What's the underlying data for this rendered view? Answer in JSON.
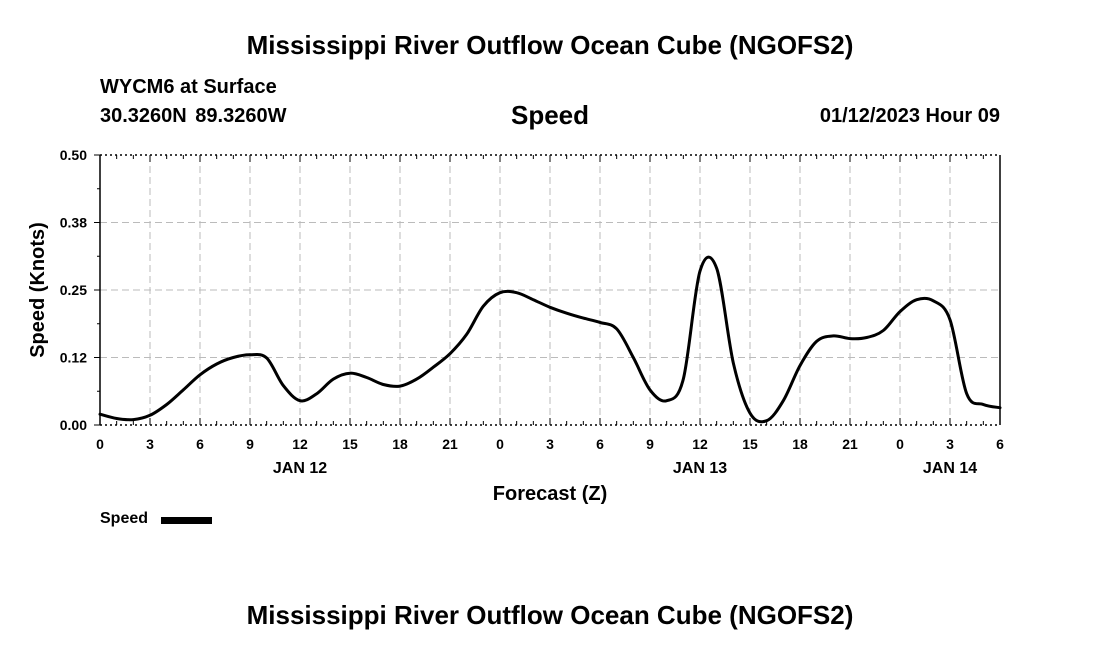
{
  "header": {
    "title": "Mississippi River Outflow Ocean Cube (NGOFS2)",
    "station": "WYCM6 at Surface",
    "coordinates": "30.3260N  89.3260W",
    "variable": "Speed",
    "timestamp": "01/12/2023 Hour 09"
  },
  "footer": {
    "title": "Mississippi River Outflow Ocean Cube (NGOFS2)"
  },
  "legend": {
    "label": "Speed"
  },
  "chart_data": {
    "type": "line",
    "title": "Speed",
    "xlabel": "Forecast (Z)",
    "ylabel": "Speed (Knots)",
    "ylim": [
      0,
      0.5
    ],
    "xlim": [
      0,
      54
    ],
    "x_unit": "hours from 00Z JAN 12",
    "y_ticks": [
      "0.00",
      "0.12",
      "0.25",
      "0.38",
      "0.50"
    ],
    "y_tick_values": [
      0,
      0.125,
      0.25,
      0.375,
      0.5
    ],
    "x_ticks": [
      "0",
      "3",
      "6",
      "9",
      "12",
      "15",
      "18",
      "21",
      "0",
      "3",
      "6",
      "9",
      "12",
      "15",
      "18",
      "21",
      "0",
      "3",
      "6"
    ],
    "date_labels": [
      {
        "label": "JAN 12",
        "hour": 12
      },
      {
        "label": "JAN 13",
        "hour": 36
      },
      {
        "label": "JAN 14",
        "hour": 51
      }
    ],
    "grid": true,
    "line_color": "#000000",
    "series": [
      {
        "name": "Speed",
        "x": [
          0,
          1,
          2,
          3,
          4,
          5,
          6,
          7,
          8,
          9,
          10,
          11,
          12,
          13,
          14,
          15,
          16,
          17,
          18,
          19,
          20,
          21,
          22,
          23,
          24,
          25,
          26,
          27,
          28,
          29,
          30,
          31,
          32,
          33,
          34,
          35,
          36,
          37,
          38,
          39,
          40,
          41,
          42,
          43,
          44,
          45,
          46,
          47,
          48,
          49,
          50,
          51,
          52,
          53,
          54
        ],
        "values": [
          0.02,
          0.012,
          0.01,
          0.018,
          0.038,
          0.065,
          0.093,
          0.113,
          0.125,
          0.13,
          0.124,
          0.073,
          0.045,
          0.058,
          0.085,
          0.096,
          0.088,
          0.075,
          0.072,
          0.085,
          0.107,
          0.132,
          0.168,
          0.22,
          0.245,
          0.245,
          0.232,
          0.218,
          0.207,
          0.198,
          0.19,
          0.178,
          0.125,
          0.065,
          0.045,
          0.085,
          0.285,
          0.29,
          0.115,
          0.022,
          0.008,
          0.045,
          0.11,
          0.155,
          0.165,
          0.16,
          0.162,
          0.175,
          0.21,
          0.232,
          0.23,
          0.195,
          0.058,
          0.038,
          0.032
        ]
      }
    ]
  }
}
